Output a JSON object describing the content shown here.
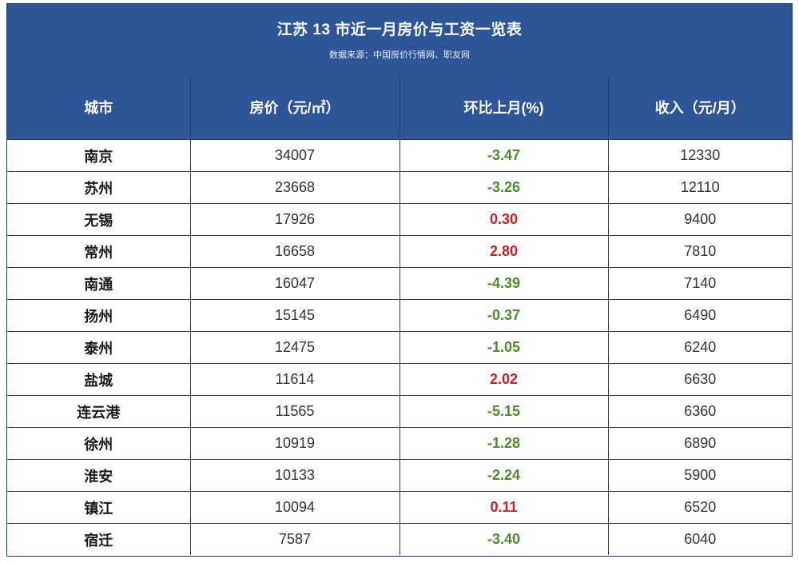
{
  "title": "江苏 13 市近一月房价与工资一览表",
  "source": "数据来源：中国房价行情网、职友网",
  "headers": {
    "city": "城市",
    "price": "房价（元/㎡）",
    "change": "环比上月(%)",
    "income": "收入（元/月）"
  },
  "colors": {
    "header_bg": "#2d5597",
    "negative": "#4a8c2a",
    "positive": "#cc1f1f"
  },
  "rows": [
    {
      "city": "南京",
      "price": "34007",
      "change": "-3.47",
      "income": "12330"
    },
    {
      "city": "苏州",
      "price": "23668",
      "change": "-3.26",
      "income": "12110"
    },
    {
      "city": "无锡",
      "price": "17926",
      "change": "0.30",
      "income": "9400"
    },
    {
      "city": "常州",
      "price": "16658",
      "change": "2.80",
      "income": "7810"
    },
    {
      "city": "南通",
      "price": "16047",
      "change": "-4.39",
      "income": "7140"
    },
    {
      "city": "扬州",
      "price": "15145",
      "change": "-0.37",
      "income": "6490"
    },
    {
      "city": "泰州",
      "price": "12475",
      "change": "-1.05",
      "income": "6240"
    },
    {
      "city": "盐城",
      "price": "11614",
      "change": "2.02",
      "income": "6630"
    },
    {
      "city": "连云港",
      "price": "11565",
      "change": "-5.15",
      "income": "6360"
    },
    {
      "city": "徐州",
      "price": "10919",
      "change": "-1.28",
      "income": "6890"
    },
    {
      "city": "淮安",
      "price": "10133",
      "change": "-2.24",
      "income": "5900"
    },
    {
      "city": "镇江",
      "price": "10094",
      "change": "0.11",
      "income": "6520"
    },
    {
      "city": "宿迁",
      "price": "7587",
      "change": "-3.40",
      "income": "6040"
    }
  ]
}
